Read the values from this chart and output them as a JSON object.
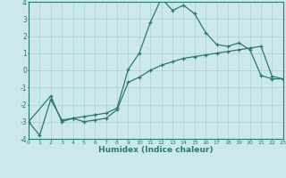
{
  "xlabel": "Humidex (Indice chaleur)",
  "ylabel": "",
  "background_color": "#cce8ec",
  "grid_color": "#aad0d4",
  "line_color": "#2a7a6a",
  "xlim": [
    0,
    23
  ],
  "ylim": [
    -4,
    4
  ],
  "xticks": [
    0,
    1,
    2,
    3,
    4,
    5,
    6,
    7,
    8,
    9,
    10,
    11,
    12,
    13,
    14,
    15,
    16,
    17,
    18,
    19,
    20,
    21,
    22,
    23
  ],
  "yticks": [
    -4,
    -3,
    -2,
    -1,
    0,
    1,
    2,
    3,
    4
  ],
  "series1_x": [
    0,
    1,
    2,
    3,
    4,
    5,
    6,
    7,
    8,
    9,
    10,
    11,
    12,
    13,
    14,
    15,
    16,
    17,
    18,
    19,
    20,
    21,
    22,
    23
  ],
  "series1_y": [
    -3.0,
    -3.8,
    -1.7,
    -2.9,
    -2.8,
    -2.7,
    -2.6,
    -2.5,
    -2.2,
    0.05,
    1.0,
    2.8,
    4.2,
    3.5,
    3.8,
    3.3,
    2.2,
    1.5,
    1.4,
    1.6,
    1.2,
    -0.3,
    -0.5,
    -0.5
  ],
  "series2_x": [
    0,
    2,
    3,
    4,
    5,
    6,
    7,
    8,
    9,
    10,
    11,
    12,
    13,
    14,
    15,
    16,
    17,
    18,
    19,
    20,
    21,
    22,
    23
  ],
  "series2_y": [
    -3.0,
    -1.5,
    -3.0,
    -2.8,
    -3.0,
    -2.9,
    -2.8,
    -2.3,
    -0.7,
    -0.4,
    0.0,
    0.3,
    0.5,
    0.7,
    0.8,
    0.9,
    1.0,
    1.1,
    1.2,
    1.3,
    1.4,
    -0.35,
    -0.5
  ]
}
